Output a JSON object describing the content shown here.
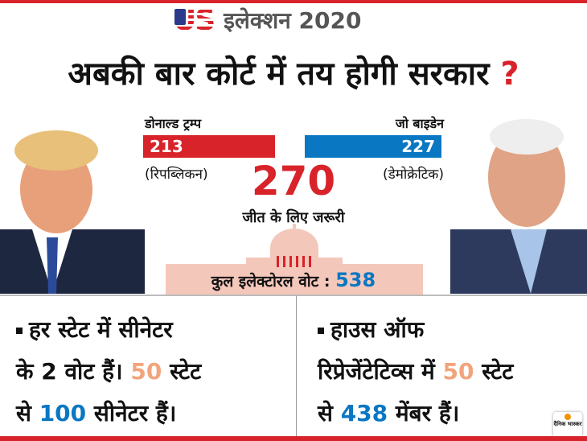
{
  "header": {
    "logo_text": "US",
    "title": "इलेक्शन 2020"
  },
  "headline": {
    "text": "अबकी बार कोर्ट में तय होगी सरकार",
    "mark": "?"
  },
  "trump": {
    "name": "डोनाल्ड ट्रम्प",
    "votes": "213",
    "party": "(रिपब्लिकन)",
    "color": "#d8232a"
  },
  "biden": {
    "name": "जो बाइडेन",
    "votes": "227",
    "party": "(डेमोक्रेटिक)",
    "color": "#0a77c2"
  },
  "majority": {
    "value": "270",
    "label": "जीत के लिए जरूरी"
  },
  "total": {
    "label": "कुल इलेक्टोरल वोट :",
    "value": "538"
  },
  "facts": [
    {
      "l1": "हर स्टेट में सीनेटर",
      "l2a": "के 2 वोट हैं।",
      "l2n": "50",
      "l2b": "स्टेट",
      "l3a": "से",
      "l3n": "100",
      "l3b": "सीनेटर हैं।"
    },
    {
      "l1": "हाउस ऑफ",
      "l2a": "रिप्रेजेंटेटिव्स में",
      "l2n": "50",
      "l2b": "स्टेट",
      "l3a": "से",
      "l3n": "438",
      "l3b": "मेंबर हैं।"
    }
  ],
  "brand": {
    "logo": "दैनिक भास्कर"
  }
}
